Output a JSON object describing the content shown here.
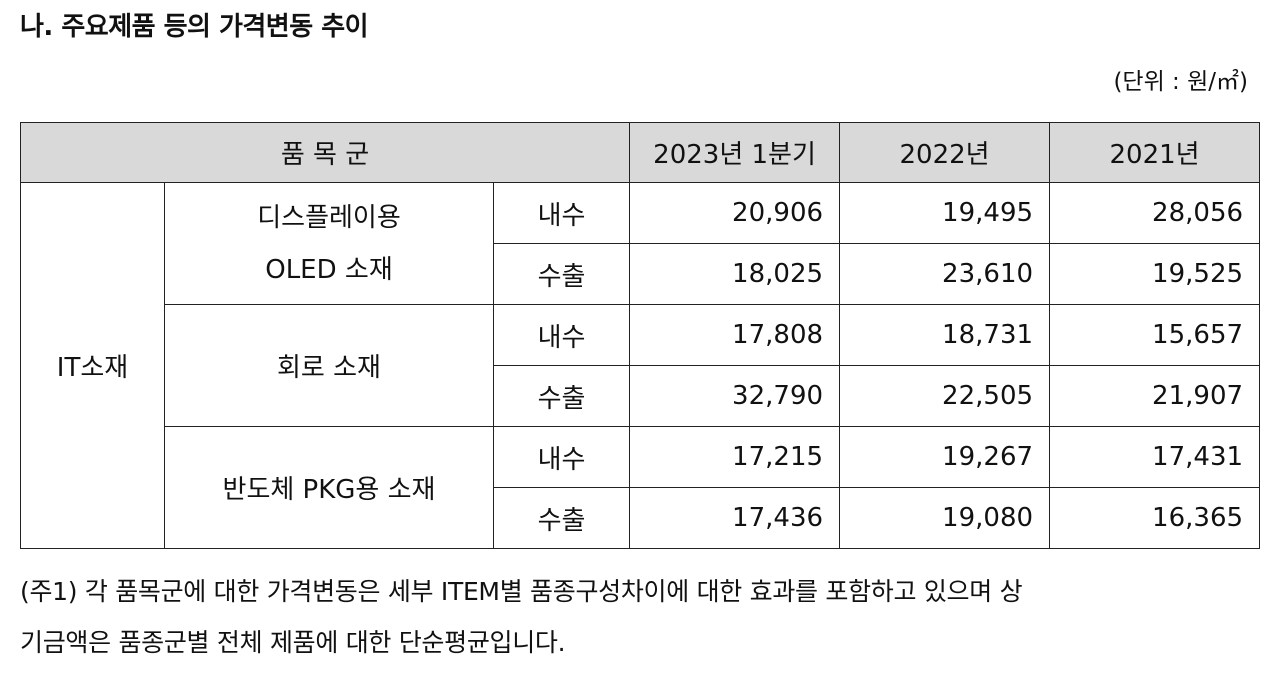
{
  "title": "나. 주요제품 등의 가격변동 추이",
  "unit": "(단위 : 원/㎡)",
  "table": {
    "header": {
      "item_group": "품 목 군",
      "col1": "2023년 1분기",
      "col2": "2022년",
      "col3": "2021년"
    },
    "category": "IT소재",
    "products": [
      {
        "name_line1": "디스플레이용",
        "name_line2": "OLED 소재",
        "rows": [
          {
            "type": "내수",
            "v1": "20,906",
            "v2": "19,495",
            "v3": "28,056"
          },
          {
            "type": "수출",
            "v1": "18,025",
            "v2": "23,610",
            "v3": "19,525"
          }
        ]
      },
      {
        "name_line1": "회로 소재",
        "name_line2": "",
        "rows": [
          {
            "type": "내수",
            "v1": "17,808",
            "v2": "18,731",
            "v3": "15,657"
          },
          {
            "type": "수출",
            "v1": "32,790",
            "v2": "22,505",
            "v3": "21,907"
          }
        ]
      },
      {
        "name_line1": "반도체 PKG용 소재",
        "name_line2": "",
        "rows": [
          {
            "type": "내수",
            "v1": "17,215",
            "v2": "19,267",
            "v3": "17,431"
          },
          {
            "type": "수출",
            "v1": "17,436",
            "v2": "19,080",
            "v3": "16,365"
          }
        ]
      }
    ]
  },
  "note_line1": "(주1) 각 품목군에 대한 가격변동은 세부 ITEM별 품종구성차이에 대한 효과를 포함하고 있으며 상",
  "note_line2": "기금액은 품종군별 전체 제품에 대한 단순평균입니다."
}
